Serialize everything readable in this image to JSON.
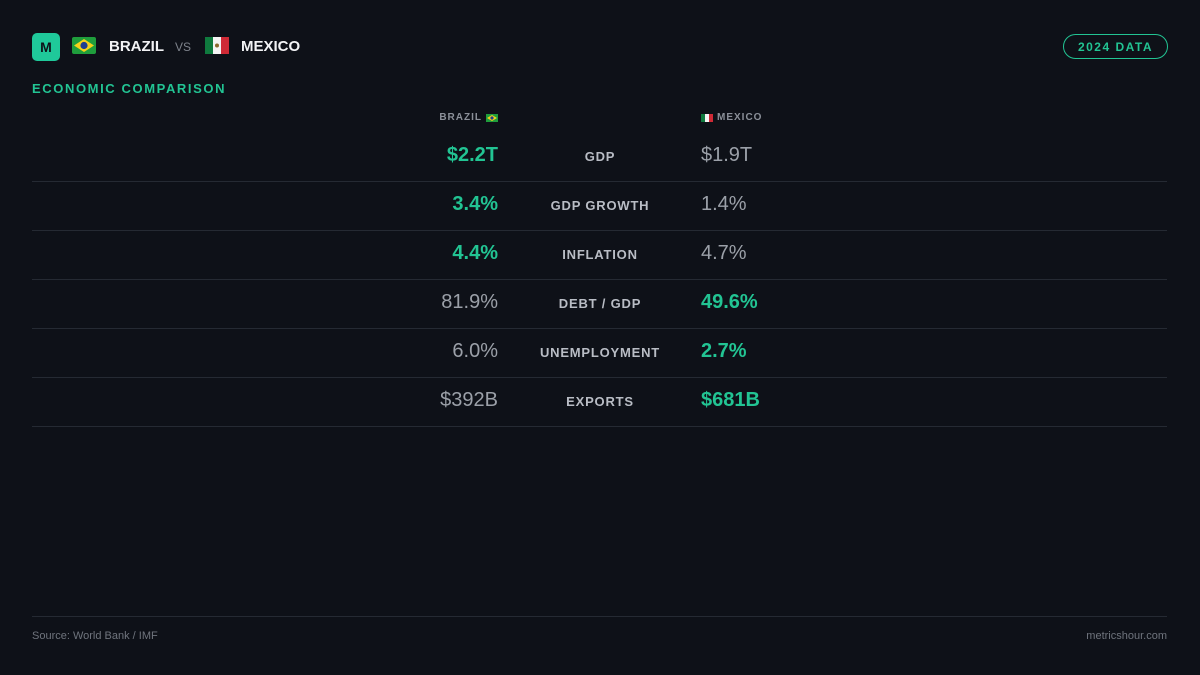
{
  "header": {
    "logo": "M",
    "left_country": "BRAZIL",
    "versus": "VS",
    "right_country": "MEXICO",
    "badge": "2024 DATA"
  },
  "section_title": "ECONOMIC COMPARISON",
  "table": {
    "columns": [
      "BRAZIL",
      "MEXICO"
    ],
    "rows": [
      {
        "label": "GDP",
        "brazil": "$2.2T",
        "mexico": "$1.9T",
        "leader": "brazil"
      },
      {
        "label": "GDP GROWTH",
        "brazil": "3.4%",
        "mexico": "1.4%",
        "leader": "brazil"
      },
      {
        "label": "INFLATION",
        "brazil": "4.4%",
        "mexico": "4.7%",
        "leader": "brazil"
      },
      {
        "label": "DEBT / GDP",
        "brazil": "81.9%",
        "mexico": "49.6%",
        "leader": "mexico"
      },
      {
        "label": "UNEMPLOYMENT",
        "brazil": "6.0%",
        "mexico": "2.7%",
        "leader": "mexico"
      },
      {
        "label": "EXPORTS",
        "brazil": "$392B",
        "mexico": "$681B",
        "leader": "mexico"
      }
    ]
  },
  "footer": {
    "source": "Source: World Bank / IMF",
    "site": "metricshour.com"
  }
}
